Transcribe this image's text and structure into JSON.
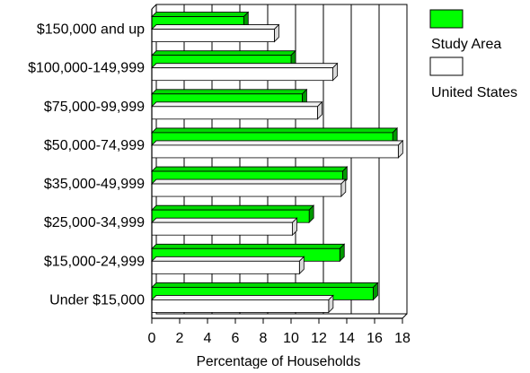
{
  "chart_data": {
    "type": "bar",
    "orientation": "horizontal",
    "categories": [
      "$150,000 and up",
      "$100,000-149,999",
      "$75,000-99,999",
      "$50,000-74,999",
      "$35,000-49,999",
      "$25,000-34,999",
      "$15,000-24,999",
      "Under $15,000"
    ],
    "series": [
      {
        "name": "Study Area",
        "color": "#00ff00",
        "values": [
          6.6,
          10.0,
          10.8,
          17.3,
          13.7,
          11.3,
          13.5,
          15.9
        ]
      },
      {
        "name": "United States",
        "color": "#ffffff",
        "values": [
          8.8,
          13.0,
          11.9,
          17.7,
          13.6,
          10.1,
          10.6,
          12.7
        ]
      }
    ],
    "xlabel": "Percentage of Households",
    "ylabel": "",
    "title": "",
    "xlim": [
      0,
      18
    ],
    "xticks": [
      0,
      2,
      4,
      6,
      8,
      10,
      12,
      14,
      16,
      18
    ],
    "grid": "vertical",
    "legend_position": "top-right",
    "style": "3d"
  }
}
